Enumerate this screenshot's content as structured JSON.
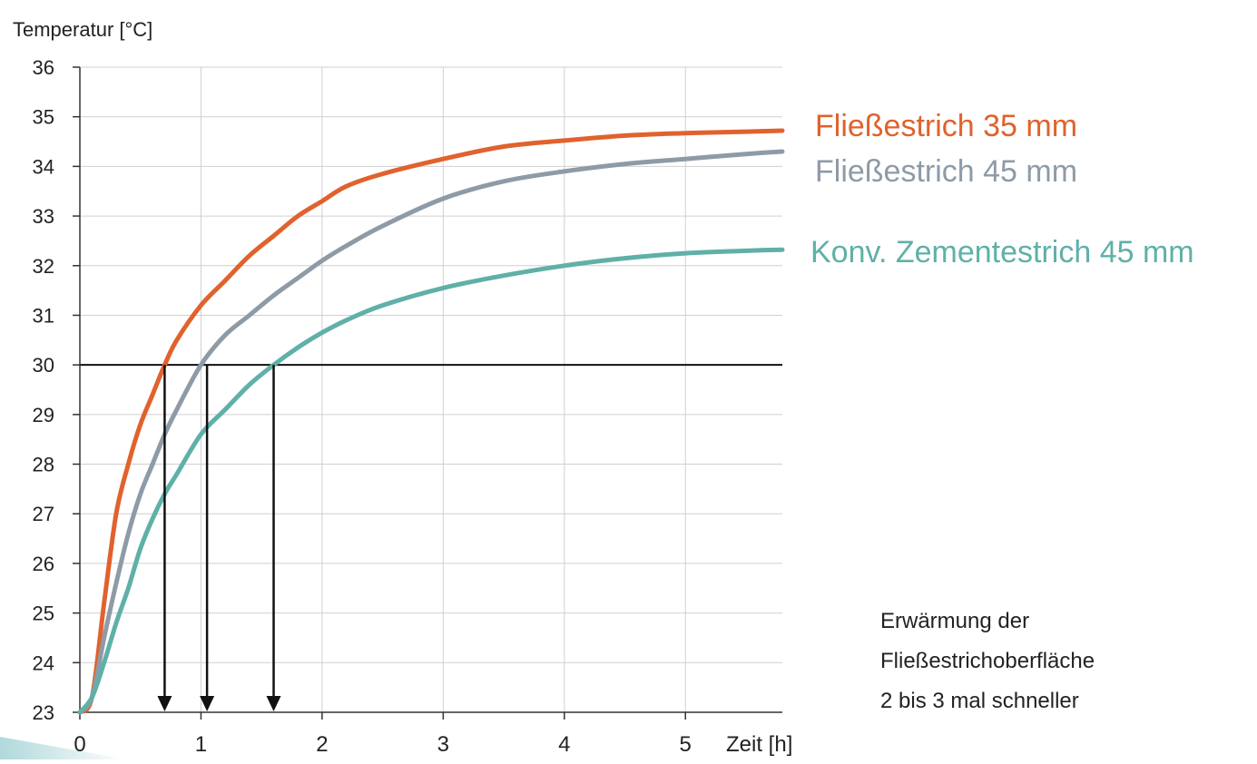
{
  "chart_data": {
    "type": "line",
    "ylabel": "Temperatur [°C]",
    "xlabel": "Zeit [h]",
    "xlim": [
      0,
      5.8
    ],
    "ylim": [
      23,
      36
    ],
    "x_ticks": [
      0,
      1,
      2,
      3,
      4,
      5
    ],
    "y_ticks": [
      23,
      24,
      25,
      26,
      27,
      28,
      29,
      30,
      31,
      32,
      33,
      34,
      35,
      36
    ],
    "grid": true,
    "reference_line": {
      "y": 30
    },
    "series": [
      {
        "name": "Fließestrich 35 mm",
        "color": "#e0622d",
        "points": [
          [
            0,
            23
          ],
          [
            0.1,
            23.3
          ],
          [
            0.2,
            25.2
          ],
          [
            0.3,
            27.0
          ],
          [
            0.4,
            28.0
          ],
          [
            0.5,
            28.8
          ],
          [
            0.6,
            29.4
          ],
          [
            0.7,
            30.0
          ],
          [
            0.8,
            30.5
          ],
          [
            1.0,
            31.2
          ],
          [
            1.2,
            31.7
          ],
          [
            1.4,
            32.2
          ],
          [
            1.6,
            32.6
          ],
          [
            1.8,
            33.0
          ],
          [
            2.0,
            33.3
          ],
          [
            2.2,
            33.6
          ],
          [
            2.5,
            33.85
          ],
          [
            3.0,
            34.15
          ],
          [
            3.5,
            34.4
          ],
          [
            4.0,
            34.52
          ],
          [
            4.5,
            34.62
          ],
          [
            5.0,
            34.67
          ],
          [
            5.5,
            34.7
          ],
          [
            5.8,
            34.72
          ]
        ]
      },
      {
        "name": "Fließestrich 45 mm",
        "color": "#8e9ba7",
        "points": [
          [
            0,
            23
          ],
          [
            0.1,
            23.3
          ],
          [
            0.2,
            24.5
          ],
          [
            0.3,
            25.6
          ],
          [
            0.4,
            26.6
          ],
          [
            0.5,
            27.4
          ],
          [
            0.6,
            28.0
          ],
          [
            0.7,
            28.6
          ],
          [
            0.8,
            29.1
          ],
          [
            1.0,
            30.0
          ],
          [
            1.2,
            30.6
          ],
          [
            1.4,
            31.0
          ],
          [
            1.6,
            31.4
          ],
          [
            1.8,
            31.75
          ],
          [
            2.0,
            32.1
          ],
          [
            2.2,
            32.4
          ],
          [
            2.5,
            32.8
          ],
          [
            3.0,
            33.35
          ],
          [
            3.5,
            33.7
          ],
          [
            4.0,
            33.9
          ],
          [
            4.5,
            34.05
          ],
          [
            5.0,
            34.15
          ],
          [
            5.5,
            34.25
          ],
          [
            5.8,
            34.3
          ]
        ]
      },
      {
        "name": "Konv. Zementestrich 45 mm",
        "color": "#5fb0a8",
        "points": [
          [
            0,
            23
          ],
          [
            0.1,
            23.3
          ],
          [
            0.2,
            24.0
          ],
          [
            0.3,
            24.8
          ],
          [
            0.4,
            25.5
          ],
          [
            0.5,
            26.3
          ],
          [
            0.6,
            26.9
          ],
          [
            0.7,
            27.4
          ],
          [
            0.8,
            27.8
          ],
          [
            1.0,
            28.6
          ],
          [
            1.2,
            29.1
          ],
          [
            1.4,
            29.6
          ],
          [
            1.6,
            30.0
          ],
          [
            1.8,
            30.35
          ],
          [
            2.0,
            30.65
          ],
          [
            2.2,
            30.9
          ],
          [
            2.5,
            31.2
          ],
          [
            3.0,
            31.55
          ],
          [
            3.5,
            31.8
          ],
          [
            4.0,
            32.0
          ],
          [
            4.5,
            32.15
          ],
          [
            5.0,
            32.25
          ],
          [
            5.5,
            32.3
          ],
          [
            5.8,
            32.32
          ]
        ]
      }
    ],
    "arrows": [
      {
        "x": 0.7,
        "from_y": 30,
        "to_y": 23
      },
      {
        "x": 1.05,
        "from_y": 30,
        "to_y": 23
      },
      {
        "x": 1.6,
        "from_y": 30,
        "to_y": 23
      }
    ],
    "annotation_lines": [
      "Erwärmung der",
      "Fließestrichoberfläche",
      "2 bis 3 mal schneller"
    ]
  }
}
